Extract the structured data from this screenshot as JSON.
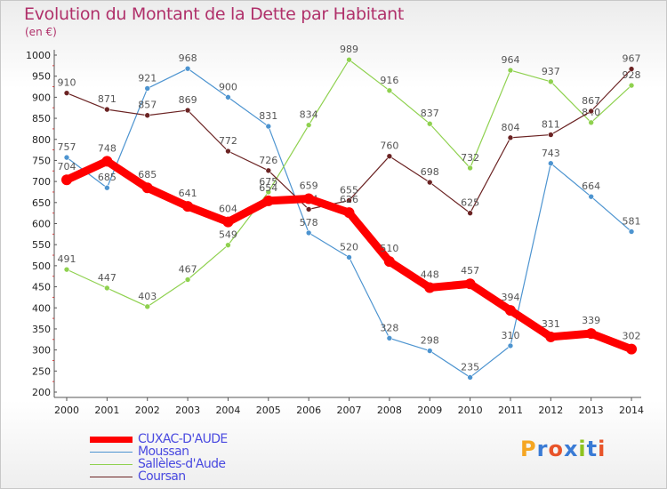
{
  "chart_data": {
    "type": "line",
    "title": "Evolution du Montant de la Dette par Habitant",
    "subtitle": "(en €)",
    "x": [
      "2000",
      "2001",
      "2002",
      "2003",
      "2004",
      "2005",
      "2006",
      "2007",
      "2008",
      "2009",
      "2010",
      "2011",
      "2012",
      "2013",
      "2014"
    ],
    "ylim": [
      200,
      1000
    ],
    "yticks": [
      "200",
      "250",
      "300",
      "350",
      "400",
      "450",
      "500",
      "550",
      "600",
      "650",
      "700",
      "750",
      "800",
      "850",
      "900",
      "950",
      "1000"
    ],
    "grid": false,
    "legend_position": "bottom-left",
    "series": [
      {
        "name": "CUXAC-D'AUDE",
        "color": "#ff0000",
        "values": [
          704,
          748,
          685,
          641,
          604,
          654,
          659,
          626,
          510,
          448,
          457,
          394,
          331,
          339,
          302
        ]
      },
      {
        "name": "Moussan",
        "color": "#4d94d0",
        "values": [
          757,
          685,
          921,
          968,
          900,
          831,
          578,
          520,
          328,
          298,
          235,
          310,
          743,
          664,
          581
        ]
      },
      {
        "name": "Sallèles-d'Aude",
        "color": "#8fd14f",
        "values": [
          491,
          447,
          403,
          467,
          549,
          675,
          834,
          989,
          916,
          837,
          732,
          964,
          937,
          840,
          928
        ]
      },
      {
        "name": "Coursan",
        "color": "#6b2323",
        "values": [
          910,
          871,
          857,
          869,
          772,
          726,
          634,
          655,
          760,
          698,
          625,
          804,
          811,
          867,
          967
        ]
      }
    ]
  },
  "branding": {
    "text": "Proxiti",
    "colors": [
      "#f5a623",
      "#3a7bd5",
      "#e8542a",
      "#3a7bd5",
      "#8fc31f",
      "#3a7bd5",
      "#e8542a"
    ]
  }
}
